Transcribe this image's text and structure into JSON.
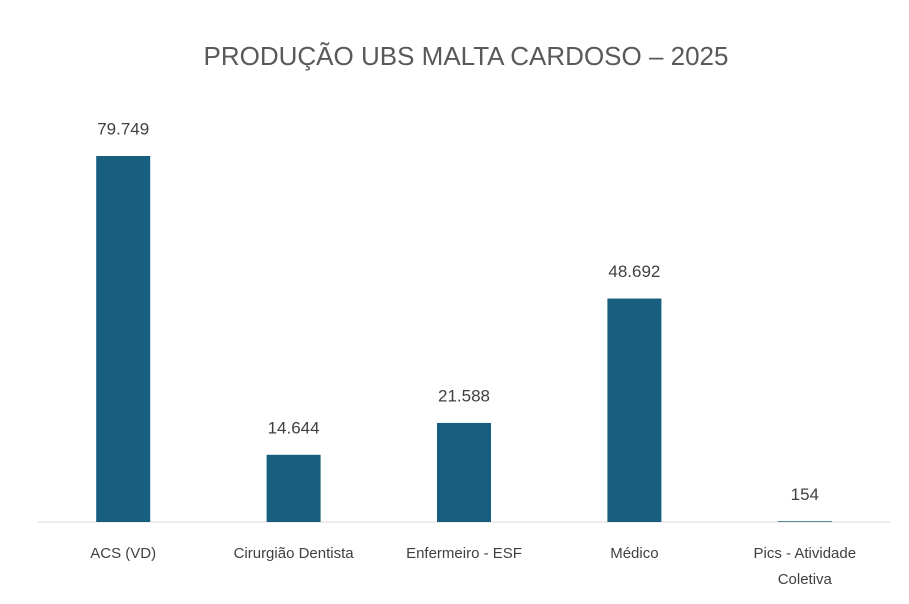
{
  "chart_data": {
    "type": "bar",
    "title": "PRODUÇÃO UBS MALTA CARDOSO – 2025",
    "categories": [
      "ACS (VD)",
      "Cirurgião Dentista",
      "Enfermeiro - ESF",
      "Médico",
      "Pics - Atividade Coletiva"
    ],
    "values": [
      79749,
      14644,
      21588,
      48692,
      154
    ],
    "value_labels": [
      "79.749",
      "14.644",
      "21.588",
      "48.692",
      "154"
    ],
    "color": "#175e7f"
  }
}
